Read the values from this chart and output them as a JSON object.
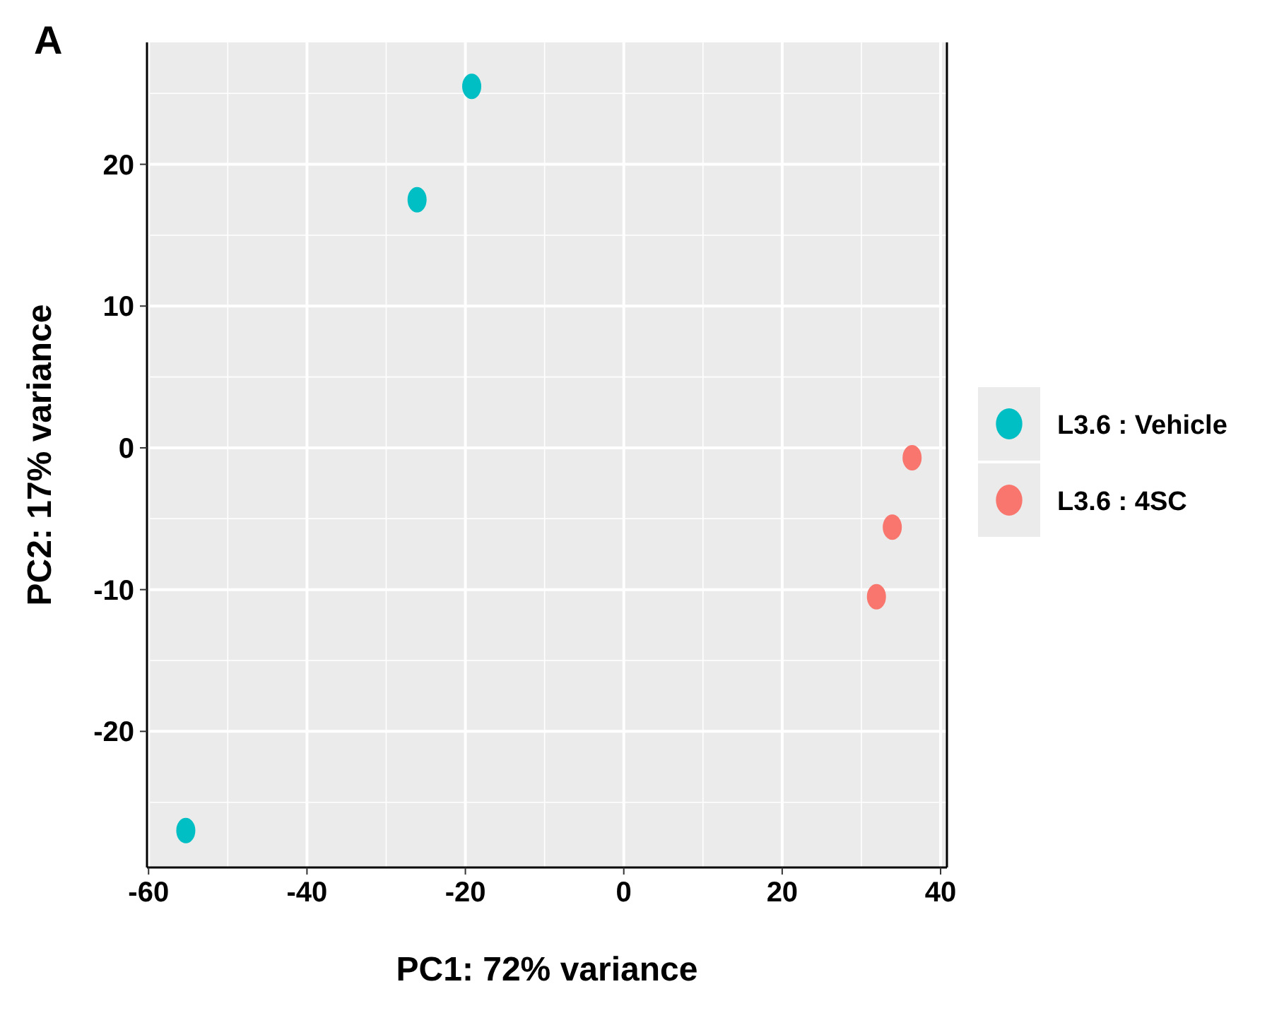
{
  "chart_data": {
    "type": "scatter",
    "xlabel": "PC1: 72% variance",
    "ylabel": "PC2: 17% variance",
    "annotations": [
      "A"
    ],
    "xlim": [
      -60.2,
      40.8
    ],
    "ylim": [
      -29.6,
      28.6
    ],
    "xticks": [
      -60,
      -40,
      -20,
      0,
      20,
      40
    ],
    "yticks": [
      -20,
      -10,
      0,
      10,
      20
    ],
    "grid": true,
    "legend": "right",
    "marker": "circle",
    "series": [
      {
        "name": "L3.6 : Vehicle",
        "color": "#00bfc4",
        "x": [
          -19.2,
          -26.1,
          -55.3
        ],
        "values": [
          25.5,
          17.5,
          -27.0
        ]
      },
      {
        "name": "L3.6 : 4SC",
        "color": "#f8766d",
        "x": [
          36.4,
          33.9,
          31.9
        ],
        "values": [
          -0.7,
          -5.6,
          -10.5
        ]
      }
    ]
  }
}
